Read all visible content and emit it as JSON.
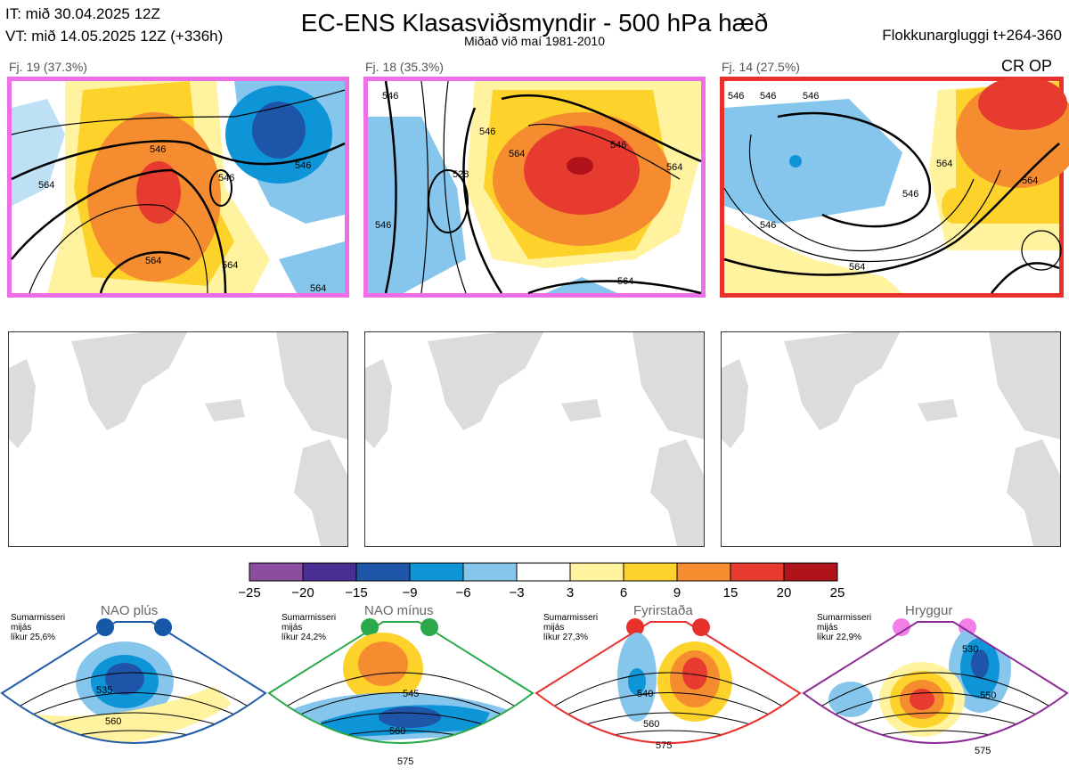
{
  "header": {
    "it_line": "IT: mið 30.04.2025 12Z",
    "vt_line": "VT: mið 14.05.2025 12Z  (+336h)",
    "title": "EC-ENS Klasasviðsmyndir - 500 hPa hæð",
    "subtitle": "Miðað við maí 1981-2010",
    "window": "Flokkunargluggi t+264-360",
    "op_label": "CR OP"
  },
  "clusters": [
    {
      "label": "Fj. 19 (37.3%)",
      "border_color": "#ee6ee8",
      "contour_labels": [
        "546",
        "546",
        "546",
        "564",
        "564",
        "564",
        "564"
      ]
    },
    {
      "label": "Fj. 18 (35.3%)",
      "border_color": "#ee6ee8",
      "contour_labels": [
        "546",
        "528",
        "546",
        "564",
        "546",
        "564",
        "564",
        "546"
      ]
    },
    {
      "label": "Fj. 14 (27.5%)",
      "border_color": "#e8302c",
      "contour_labels": [
        "546",
        "546",
        "546",
        "546",
        "564",
        "564",
        "546",
        "564"
      ]
    }
  ],
  "colorbar": {
    "ticks": [
      "−25",
      "−20",
      "−15",
      "−9",
      "−6",
      "−3",
      "3",
      "6",
      "9",
      "15",
      "20",
      "25"
    ],
    "colors": [
      "#8c4da0",
      "#4a2e94",
      "#1e55a8",
      "#0e95d8",
      "#86c6ec",
      "#ffffff",
      "#fff3a0",
      "#fdd22b",
      "#f58d30",
      "#e83b2f",
      "#b0141a"
    ]
  },
  "regimes": [
    {
      "name": "NAO plús",
      "season": "Sumarmisseri",
      "period": "mijás",
      "likelihood": "líkur 25,6%",
      "frame_color": "#1e5aa8",
      "dot_color": "#1558a8",
      "contour_labels": [
        "535",
        "560"
      ]
    },
    {
      "name": "NAO mínus",
      "season": "Sumarmisseri",
      "period": "mijás",
      "likelihood": "líkur 24,2%",
      "frame_color": "#2aa84a",
      "dot_color": "#2aa84a",
      "contour_labels": [
        "545",
        "560",
        "575"
      ]
    },
    {
      "name": "Fyrirstaða",
      "season": "Sumarmisseri",
      "period": "mijás",
      "likelihood": "líkur 27,3%",
      "frame_color": "#e8302c",
      "dot_color": "#e8302c",
      "contour_labels": [
        "540",
        "560",
        "575"
      ]
    },
    {
      "name": "Hryggur",
      "season": "Sumarmisseri",
      "period": "mijás",
      "likelihood": "líkur 22,9%",
      "frame_color": "#8c2a94",
      "dot_color": "#f27ee8",
      "contour_labels": [
        "530",
        "550",
        "575"
      ]
    }
  ],
  "chart_data": {
    "type": "heatmap",
    "title": "EC-ENS Klasasviðsmyndir - 500 hPa hæð",
    "subtitle": "Miðað við maí 1981-2010",
    "variable": "500 hPa height anomaly (dam) with height contours",
    "colorbar_ticks": [
      -25,
      -20,
      -15,
      -9,
      -6,
      -3,
      3,
      6,
      9,
      15,
      20,
      25
    ],
    "clusters": [
      {
        "id": 19,
        "percent": 37.3
      },
      {
        "id": 18,
        "percent": 35.3
      },
      {
        "id": 14,
        "percent": 27.5
      }
    ],
    "regimes": [
      {
        "name": "NAO plús",
        "likelihood_percent": 25.6
      },
      {
        "name": "NAO mínus",
        "likelihood_percent": 24.2
      },
      {
        "name": "Fyrirstaða",
        "likelihood_percent": 27.3
      },
      {
        "name": "Hryggur",
        "likelihood_percent": 22.9
      }
    ]
  }
}
